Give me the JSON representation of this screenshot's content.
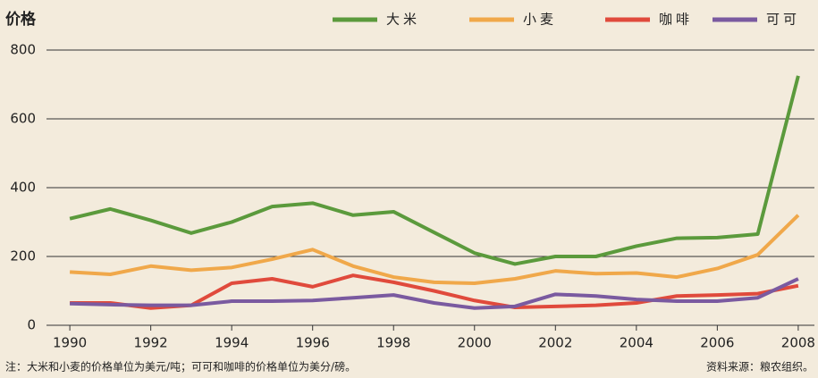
{
  "chart_data": {
    "type": "line",
    "y_label": "价格",
    "note": "注：大米和小麦的价格单位为美元/吨；可可和咖啡的价格单位为美分/磅。",
    "source": "资料来源：粮农组织。",
    "x": [
      1990,
      1991,
      1992,
      1993,
      1994,
      1995,
      1996,
      1997,
      1998,
      1999,
      2000,
      2001,
      2002,
      2003,
      2004,
      2005,
      2006,
      2007,
      2008
    ],
    "series": [
      {
        "name": "大米",
        "color": "#5b9a3c",
        "values": [
          310,
          338,
          305,
          268,
          300,
          345,
          355,
          320,
          330,
          270,
          210,
          178,
          200,
          200,
          230,
          253,
          255,
          265,
          725
        ]
      },
      {
        "name": "小麦",
        "color": "#f0a84a",
        "values": [
          155,
          148,
          172,
          160,
          168,
          192,
          220,
          172,
          140,
          125,
          122,
          135,
          158,
          150,
          152,
          140,
          165,
          205,
          320
        ]
      },
      {
        "name": "咖啡",
        "color": "#e04a3c",
        "values": [
          65,
          65,
          50,
          58,
          122,
          135,
          112,
          145,
          125,
          100,
          72,
          52,
          55,
          58,
          65,
          85,
          88,
          92,
          115
        ]
      },
      {
        "name": "可可",
        "color": "#7a5aa0",
        "values": [
          63,
          60,
          58,
          58,
          70,
          70,
          72,
          80,
          88,
          65,
          50,
          55,
          90,
          85,
          75,
          70,
          70,
          80,
          135
        ]
      }
    ],
    "xlim": [
      1989.6,
      2008.4
    ],
    "xticks": [
      1990,
      1992,
      1994,
      1996,
      1998,
      2000,
      2002,
      2004,
      2006,
      2008
    ],
    "ylim": [
      0,
      800
    ],
    "yticks": [
      0,
      200,
      400,
      600,
      800
    ],
    "grid": true
  }
}
